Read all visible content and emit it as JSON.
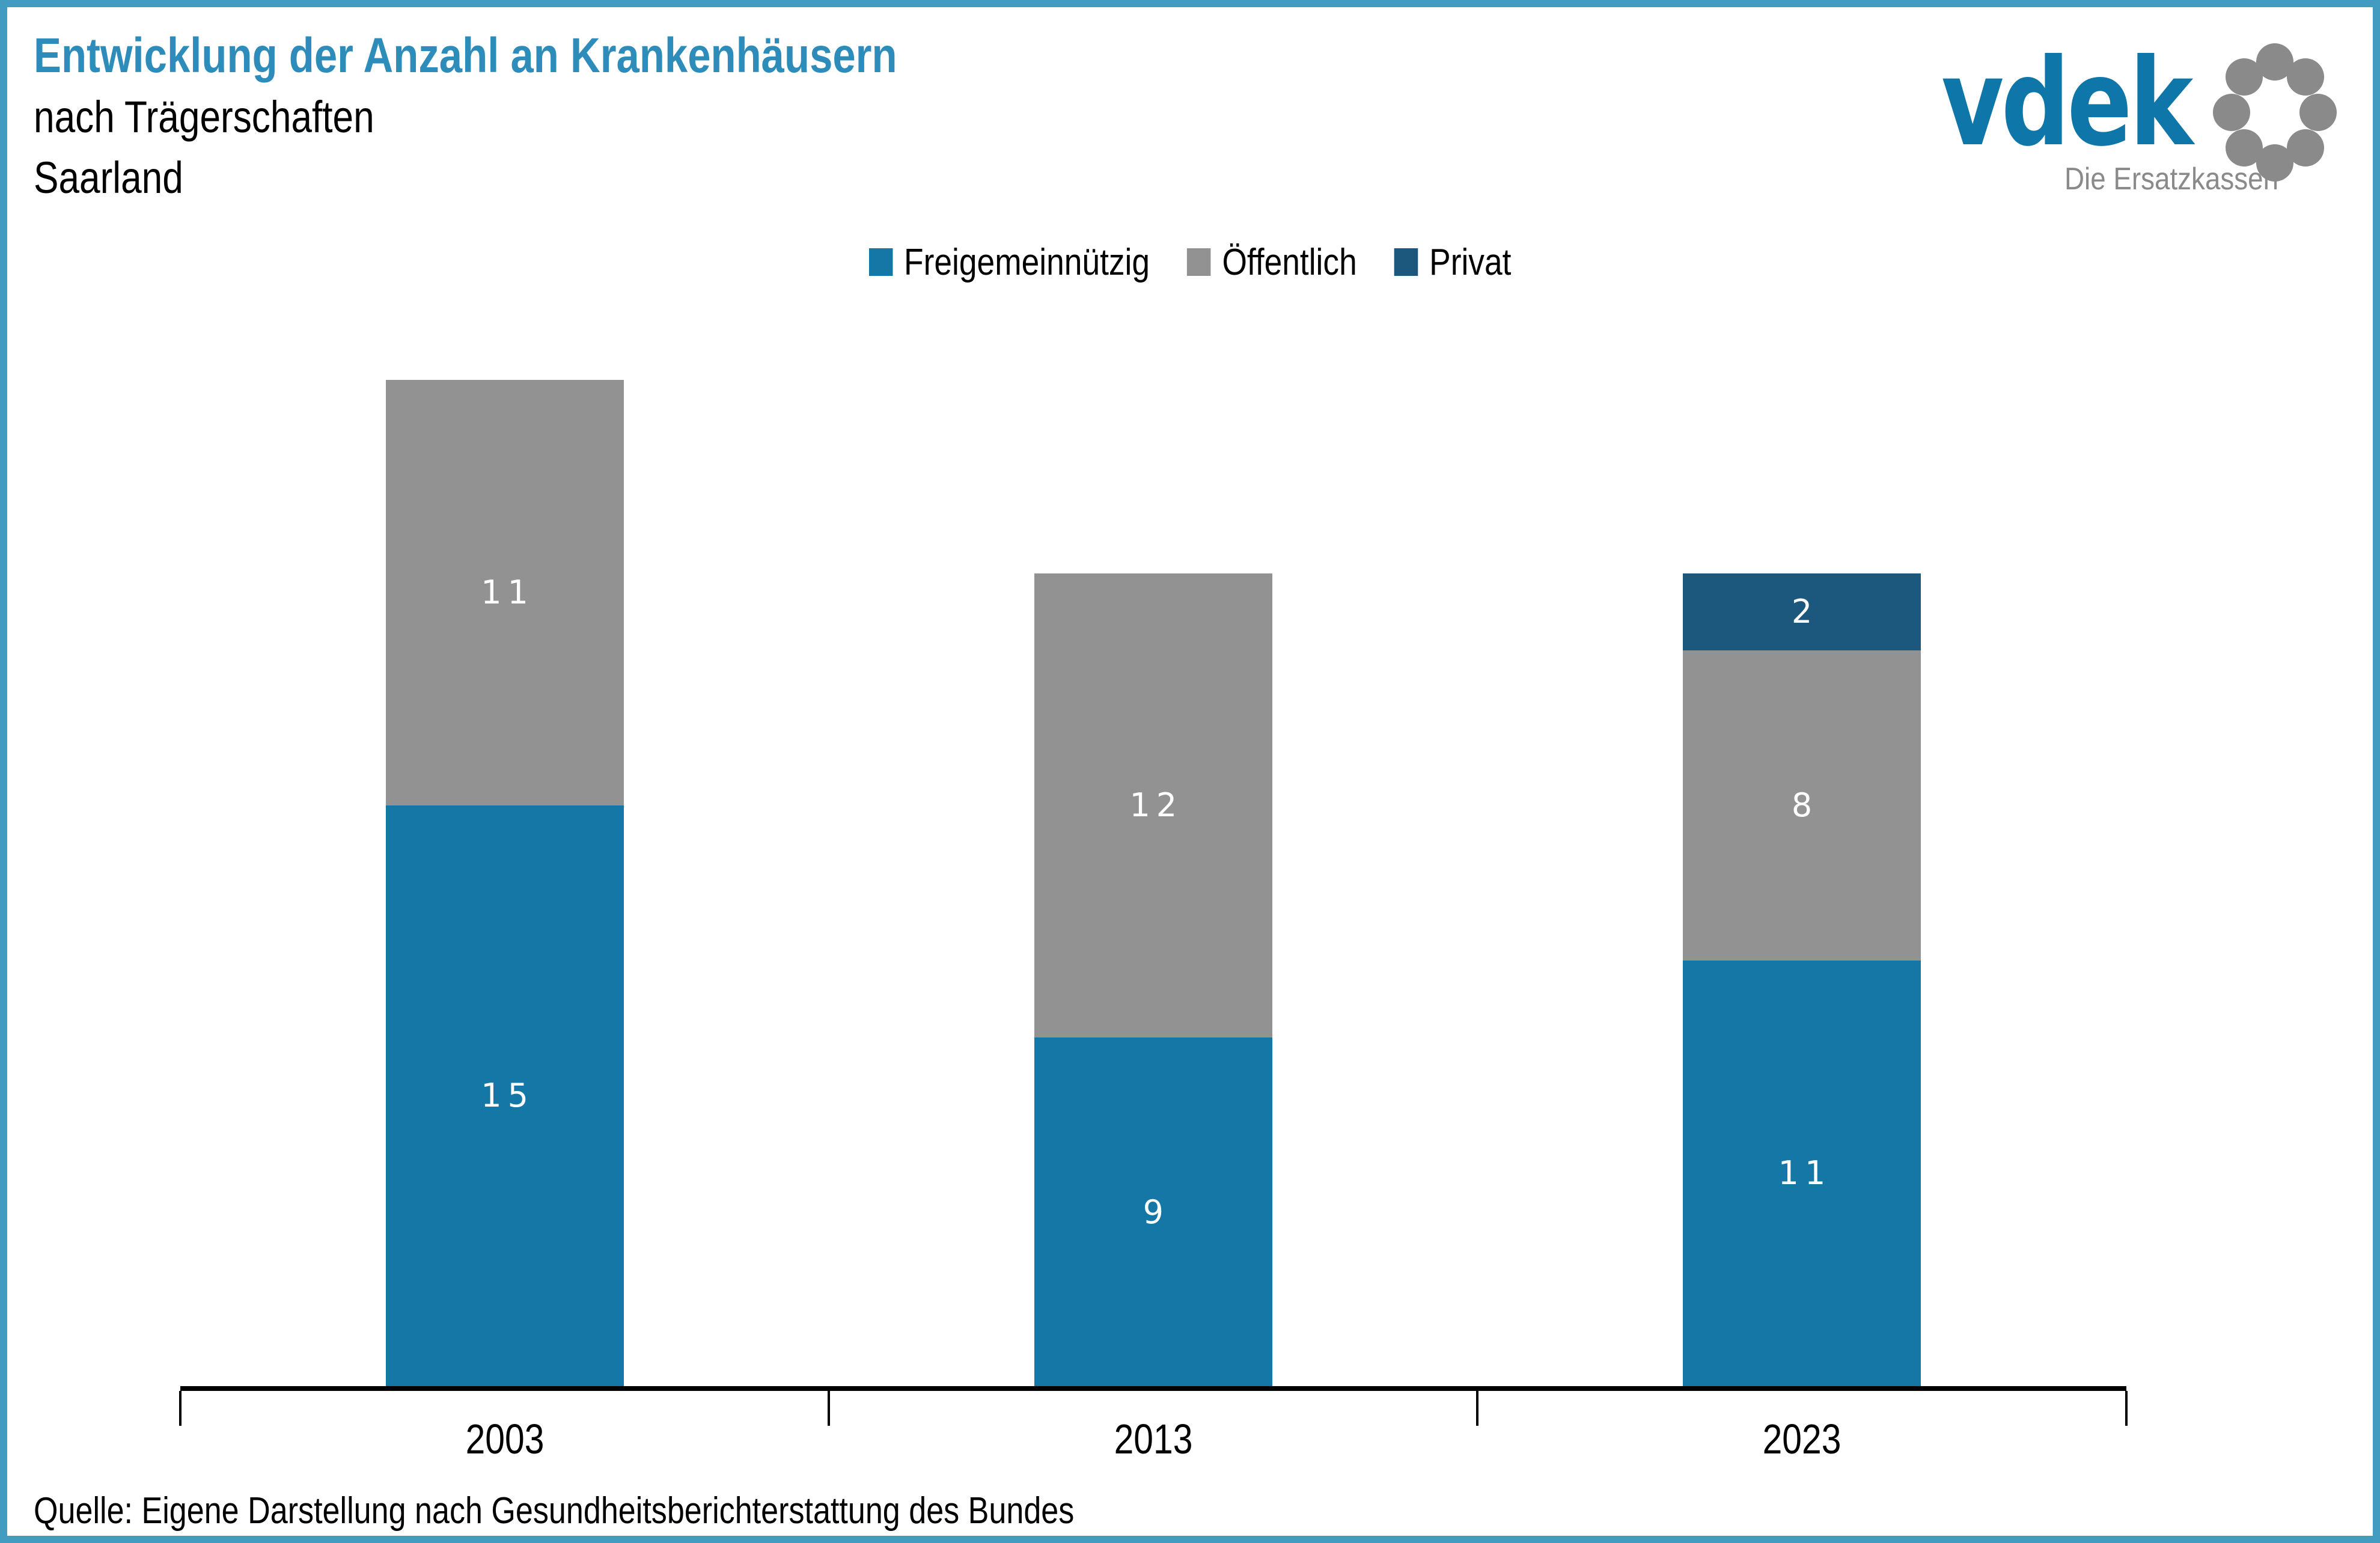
{
  "page": {
    "background": "#ffffff",
    "border_color": "#429bc0"
  },
  "header": {
    "title_line1": "Entwicklung der Anzahl an Krankenhäusern",
    "title_line2": "nach Trägerschaften",
    "title_line3": "Saarland",
    "title_color": "#2d8cba"
  },
  "logo": {
    "wordmark": "vdek",
    "tagline": "Die Ersatzkassen",
    "wordmark_color": "#0e76a8",
    "tagline_color": "#8a8a8a",
    "ring_color": "#8a8a8a"
  },
  "chart_data": {
    "type": "bar",
    "stacked": true,
    "orientation": "vertical",
    "categories": [
      "2003",
      "2013",
      "2023"
    ],
    "series": [
      {
        "key": "freigemeinnuetzig",
        "name": "Freigemeinnützig",
        "color": "#1577a5",
        "values": [
          15,
          9,
          11
        ]
      },
      {
        "key": "oeffentlich",
        "name": "Öffentlich",
        "color": "#929292",
        "values": [
          11,
          12,
          8
        ]
      },
      {
        "key": "privat",
        "name": "Privat",
        "color": "#1c577d",
        "values": [
          0,
          0,
          2
        ]
      }
    ],
    "value_label_color": "#ffffff",
    "legend_position": "top-center",
    "x_axis": {
      "line_color": "#000000",
      "tick_count": 4
    },
    "y_axis": {
      "visible": false,
      "implied_max": 26
    },
    "grid": false
  },
  "footer": {
    "source": "Quelle: Eigene Darstellung nach Gesundheitsberichterstattung des Bundes"
  }
}
